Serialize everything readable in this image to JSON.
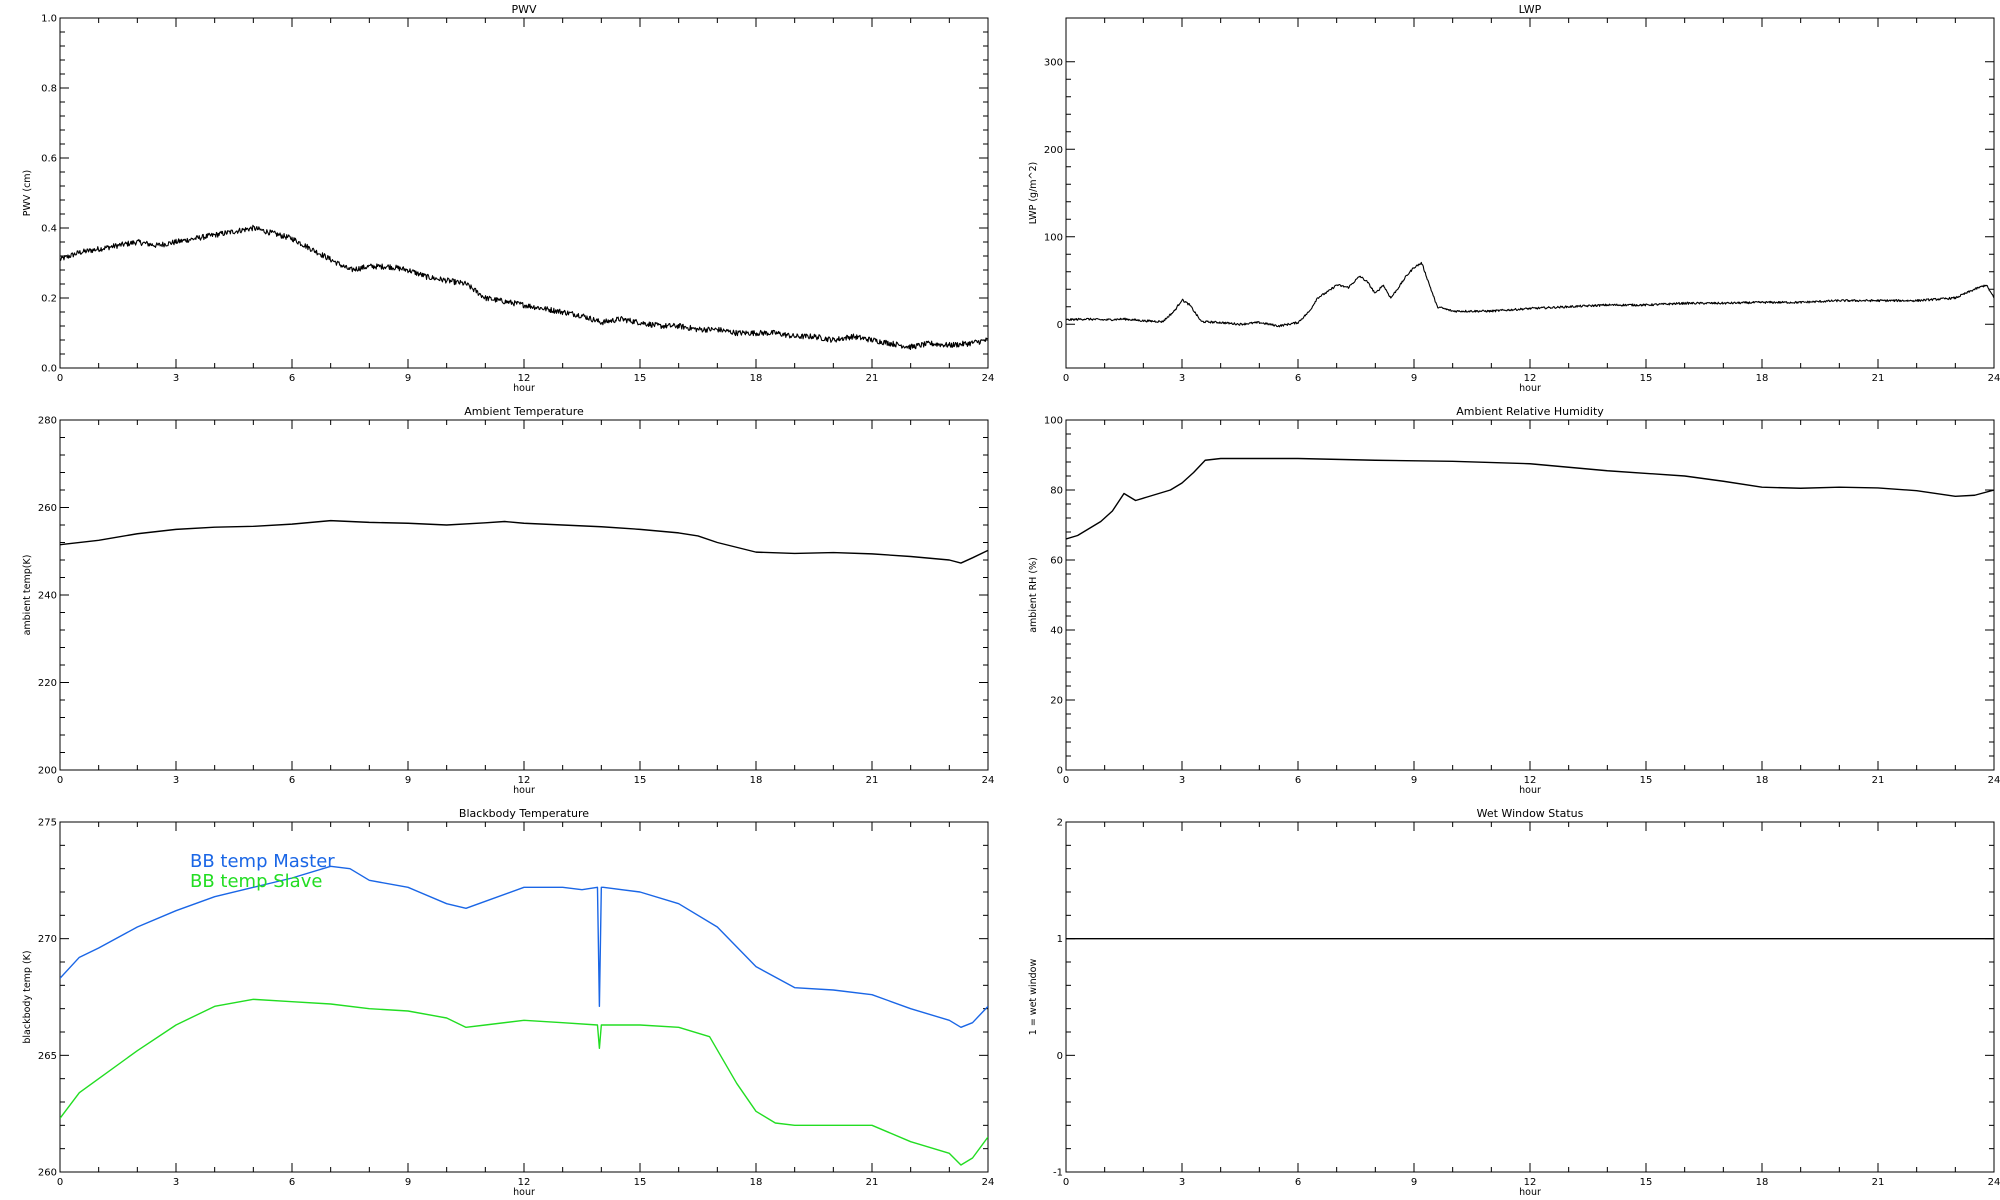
{
  "chart_data": [
    {
      "id": "pwv",
      "type": "line",
      "title": "PWV",
      "xlabel": "hour",
      "ylabel": "PWV (cm)",
      "xlim": [
        0,
        24
      ],
      "ylim": [
        0,
        1
      ],
      "xticks": [
        0,
        3,
        6,
        9,
        12,
        15,
        18,
        21,
        24
      ],
      "yticks": [
        "0.0",
        "0.2",
        "0.4",
        "0.6",
        "0.8",
        "1.0"
      ],
      "grid": false,
      "series": [
        {
          "color": "#000000",
          "noise": 0.008,
          "x": [
            0,
            0.5,
            1,
            1.5,
            2,
            2.5,
            3,
            3.5,
            4,
            4.5,
            5,
            5.5,
            6,
            6.5,
            7,
            7.5,
            8,
            8.5,
            9,
            9.5,
            10,
            10.5,
            11,
            11.5,
            12,
            12.5,
            13,
            13.5,
            14,
            14.5,
            15,
            15.5,
            16,
            16.5,
            17,
            17.5,
            18,
            18.5,
            19,
            19.5,
            20,
            20.5,
            21,
            21.5,
            22,
            22.5,
            23,
            23.5,
            24
          ],
          "y": [
            0.31,
            0.33,
            0.34,
            0.35,
            0.36,
            0.35,
            0.36,
            0.37,
            0.38,
            0.39,
            0.4,
            0.385,
            0.37,
            0.34,
            0.31,
            0.28,
            0.29,
            0.29,
            0.28,
            0.26,
            0.25,
            0.24,
            0.2,
            0.19,
            0.18,
            0.17,
            0.16,
            0.15,
            0.13,
            0.14,
            0.13,
            0.12,
            0.12,
            0.11,
            0.11,
            0.1,
            0.1,
            0.1,
            0.09,
            0.09,
            0.08,
            0.09,
            0.08,
            0.07,
            0.06,
            0.07,
            0.065,
            0.07,
            0.08
          ]
        }
      ]
    },
    {
      "id": "lwp",
      "type": "line",
      "title": "LWP",
      "xlabel": "hour",
      "ylabel": "LWP (g/m^2)",
      "xlim": [
        0,
        24
      ],
      "ylim": [
        -50,
        350
      ],
      "xticks": [
        0,
        3,
        6,
        9,
        12,
        15,
        18,
        21,
        24
      ],
      "yticks": [
        "0",
        "100",
        "200",
        "300"
      ],
      "grid": false,
      "series": [
        {
          "color": "#000000",
          "noise": 1.2,
          "x": [
            0,
            0.5,
            1,
            1.5,
            2,
            2.5,
            2.8,
            3,
            3.2,
            3.5,
            4,
            4.5,
            5,
            5.5,
            6,
            6.3,
            6.5,
            6.8,
            7,
            7.3,
            7.6,
            7.8,
            8,
            8.2,
            8.4,
            8.6,
            8.8,
            9,
            9.2,
            9.4,
            9.6,
            10,
            11,
            12,
            13,
            14,
            15,
            16,
            17,
            18,
            19,
            20,
            21,
            22,
            23,
            23.5,
            23.8,
            24
          ],
          "y": [
            5,
            6,
            5,
            6,
            4,
            3,
            15,
            28,
            22,
            3,
            2,
            0,
            2,
            -2,
            2,
            15,
            30,
            38,
            45,
            42,
            55,
            48,
            35,
            45,
            30,
            42,
            55,
            65,
            70,
            45,
            20,
            15,
            15,
            18,
            20,
            22,
            22,
            24,
            24,
            25,
            25,
            27,
            27,
            27,
            30,
            40,
            45,
            30
          ]
        }
      ]
    },
    {
      "id": "ambient-temp",
      "type": "line",
      "title": "Ambient Temperature",
      "xlabel": "hour",
      "ylabel": "ambient temp(K)",
      "xlim": [
        0,
        24
      ],
      "ylim": [
        200,
        280
      ],
      "xticks": [
        0,
        3,
        6,
        9,
        12,
        15,
        18,
        21,
        24
      ],
      "yticks": [
        "200",
        "220",
        "240",
        "260",
        "280"
      ],
      "grid": false,
      "series": [
        {
          "color": "#000000",
          "noise": 0,
          "x": [
            0,
            1,
            2,
            3,
            4,
            5,
            6,
            7,
            8,
            9,
            10,
            11,
            11.5,
            12,
            13,
            14,
            15,
            16,
            16.5,
            17,
            18,
            19,
            20,
            21,
            22,
            23,
            23.3,
            23.6,
            24
          ],
          "y": [
            251.5,
            252.5,
            254,
            255,
            255.5,
            255.7,
            256.2,
            257,
            256.6,
            256.4,
            256,
            256.5,
            256.8,
            256.4,
            256,
            255.6,
            255,
            254.2,
            253.5,
            252,
            249.8,
            249.5,
            249.7,
            249.4,
            248.8,
            248,
            247.3,
            248.5,
            250.2
          ]
        }
      ]
    },
    {
      "id": "ambient-rh",
      "type": "line",
      "title": "Ambient Relative Humidity",
      "xlabel": "hour",
      "ylabel": "ambient RH (%)",
      "xlim": [
        0,
        24
      ],
      "ylim": [
        0,
        100
      ],
      "xticks": [
        0,
        3,
        6,
        9,
        12,
        15,
        18,
        21,
        24
      ],
      "yticks": [
        "0",
        "20",
        "40",
        "60",
        "80",
        "100"
      ],
      "grid": false,
      "series": [
        {
          "color": "#000000",
          "noise": 0,
          "x": [
            0,
            0.3,
            0.6,
            0.9,
            1.2,
            1.5,
            1.8,
            2.1,
            2.4,
            2.7,
            3,
            3.3,
            3.6,
            4,
            6,
            8,
            10,
            12,
            14,
            16,
            17,
            18,
            19,
            20,
            21,
            22,
            23,
            23.5,
            24
          ],
          "y": [
            66,
            67,
            69,
            71,
            74,
            79,
            77,
            78,
            79,
            80,
            82,
            85,
            88.5,
            89,
            89,
            88.5,
            88.2,
            87.5,
            85.5,
            84,
            82.5,
            80.8,
            80.5,
            80.8,
            80.6,
            79.8,
            78.2,
            78.5,
            80
          ]
        }
      ]
    },
    {
      "id": "blackbody-temp",
      "type": "line",
      "title": "Blackbody Temperature",
      "xlabel": "hour",
      "ylabel": "blackbody temp (K)",
      "xlim": [
        0,
        24
      ],
      "ylim": [
        260,
        275
      ],
      "xticks": [
        0,
        3,
        6,
        9,
        12,
        15,
        18,
        21,
        24
      ],
      "yticks": [
        "260",
        "265",
        "270",
        "275"
      ],
      "grid": false,
      "legend_location": "upper-left",
      "series": [
        {
          "name": "BB temp Master",
          "color": "#1a66e6",
          "noise": 0,
          "x": [
            0,
            0.5,
            1,
            2,
            3,
            4,
            5,
            6,
            7,
            7.5,
            8,
            9,
            10,
            10.5,
            11,
            12,
            13,
            13.5,
            13.9,
            13.95,
            14,
            14.05,
            15,
            16,
            17,
            18,
            19,
            20,
            21,
            22,
            23,
            23.3,
            23.6,
            24
          ],
          "y": [
            268.3,
            269.2,
            269.6,
            270.5,
            271.2,
            271.8,
            272.2,
            272.6,
            273.1,
            273,
            272.5,
            272.2,
            271.5,
            271.3,
            271.6,
            272.2,
            272.2,
            272.1,
            272.2,
            267.1,
            272.2,
            272.2,
            272,
            271.5,
            270.5,
            268.8,
            267.9,
            267.8,
            267.6,
            267,
            266.5,
            266.2,
            266.4,
            267.1
          ]
        },
        {
          "name": "BB temp Slave",
          "color": "#22dd22",
          "noise": 0,
          "x": [
            0,
            0.5,
            1,
            2,
            3,
            4,
            5,
            6,
            7,
            8,
            9,
            10,
            10.5,
            11,
            12,
            13,
            13.9,
            13.95,
            14,
            14.05,
            15,
            16,
            16.8,
            17.5,
            18,
            18.5,
            19,
            20,
            21,
            22,
            23,
            23.3,
            23.6,
            24
          ],
          "y": [
            262.3,
            263.4,
            264,
            265.2,
            266.3,
            267.1,
            267.4,
            267.3,
            267.2,
            267,
            266.9,
            266.6,
            266.2,
            266.3,
            266.5,
            266.4,
            266.3,
            265.3,
            266.3,
            266.3,
            266.3,
            266.2,
            265.8,
            263.8,
            262.6,
            262.1,
            262,
            262,
            262,
            261.3,
            260.8,
            260.3,
            260.6,
            261.5
          ]
        }
      ]
    },
    {
      "id": "wet-window",
      "type": "line",
      "title": "Wet Window Status",
      "xlabel": "hour",
      "ylabel": "1 = wet window",
      "xlim": [
        0,
        24
      ],
      "ylim": [
        -1,
        2
      ],
      "xticks": [
        0,
        3,
        6,
        9,
        12,
        15,
        18,
        21,
        24
      ],
      "yticks": [
        "-1",
        "0",
        "1",
        "2"
      ],
      "grid": false,
      "series": [
        {
          "color": "#000000",
          "noise": 0,
          "x": [
            0,
            24
          ],
          "y": [
            1,
            1
          ]
        }
      ]
    }
  ]
}
